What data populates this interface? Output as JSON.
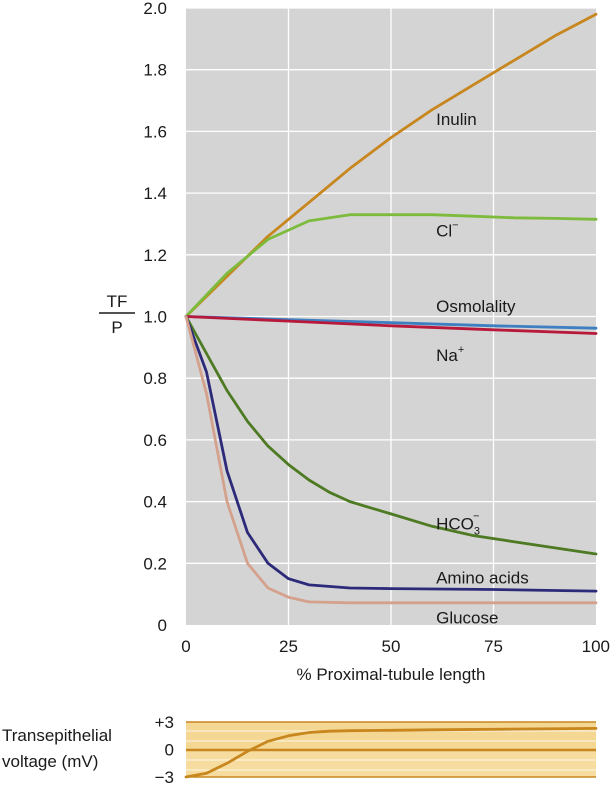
{
  "chart_data": [
    {
      "type": "line",
      "ylabel_numerator": "TF",
      "ylabel_denominator": "P",
      "xlabel": "% Proximal-tubule length",
      "xlim": [
        0,
        100
      ],
      "ylim": [
        0,
        2.0
      ],
      "x_ticks": [
        "0",
        "25",
        "50",
        "75",
        "100"
      ],
      "x_tick_values": [
        0,
        25,
        50,
        75,
        100
      ],
      "y_ticks": [
        "2.0",
        "1.8",
        "1.6",
        "1.4",
        "1.2",
        "1.0",
        "0.8",
        "0.6",
        "0.4",
        "0.2",
        "0"
      ],
      "y_tick_values": [
        2.0,
        1.8,
        1.6,
        1.4,
        1.2,
        1.0,
        0.8,
        0.6,
        0.4,
        0.2,
        0
      ],
      "grid": true,
      "series": [
        {
          "name": "Inulin",
          "color": "#c8861e",
          "label_x": 61,
          "label_y": 1.62,
          "x": [
            0,
            10,
            20,
            30,
            40,
            50,
            60,
            70,
            80,
            90,
            100
          ],
          "y": [
            1.0,
            1.13,
            1.26,
            1.37,
            1.48,
            1.58,
            1.67,
            1.75,
            1.83,
            1.91,
            1.98
          ]
        },
        {
          "name": "Cl",
          "sup": "−",
          "color": "#7dbb3c",
          "label_x": 61,
          "label_y": 1.26,
          "x": [
            0,
            10,
            20,
            30,
            40,
            50,
            60,
            70,
            80,
            90,
            100
          ],
          "y": [
            1.0,
            1.14,
            1.25,
            1.31,
            1.33,
            1.33,
            1.33,
            1.325,
            1.32,
            1.318,
            1.315
          ]
        },
        {
          "name": "Osmolality",
          "color": "#3e7fc2",
          "label_x": 61,
          "label_y": 1.015,
          "x": [
            0,
            25,
            50,
            75,
            100
          ],
          "y": [
            1.0,
            0.99,
            0.98,
            0.97,
            0.962
          ]
        },
        {
          "name": "Na",
          "sup": "+",
          "color": "#b8193b",
          "label_x": 61,
          "label_y": 0.855,
          "x": [
            0,
            25,
            50,
            75,
            100
          ],
          "y": [
            1.0,
            0.985,
            0.97,
            0.957,
            0.945
          ]
        },
        {
          "name": "HCO",
          "sub": "3",
          "sup": "−",
          "color": "#4d7a22",
          "label_x": 61,
          "label_y": 0.31,
          "x": [
            0,
            5,
            10,
            15,
            20,
            25,
            30,
            35,
            40,
            45,
            50,
            60,
            70,
            80,
            90,
            100
          ],
          "y": [
            1.0,
            0.88,
            0.76,
            0.66,
            0.58,
            0.52,
            0.47,
            0.43,
            0.4,
            0.38,
            0.36,
            0.32,
            0.29,
            0.27,
            0.25,
            0.23
          ]
        },
        {
          "name": "Amino acids",
          "color": "#2d2a7a",
          "label_x": 61,
          "label_y": 0.135,
          "x": [
            0,
            5,
            10,
            15,
            20,
            25,
            30,
            40,
            50,
            75,
            100
          ],
          "y": [
            1.0,
            0.82,
            0.5,
            0.3,
            0.2,
            0.15,
            0.13,
            0.12,
            0.118,
            0.115,
            0.11
          ]
        },
        {
          "name": "Glucose",
          "color": "#d4a18d",
          "label_x": 61,
          "label_y": 0.005,
          "x": [
            0,
            5,
            10,
            15,
            20,
            25,
            30,
            40,
            50,
            75,
            100
          ],
          "y": [
            1.0,
            0.75,
            0.4,
            0.2,
            0.12,
            0.09,
            0.075,
            0.072,
            0.072,
            0.072,
            0.072
          ]
        }
      ]
    },
    {
      "type": "line",
      "ylabel_line1": "Transepithelial",
      "ylabel_line2": "voltage (mV)",
      "xlim": [
        0,
        100
      ],
      "ylim": [
        -3,
        3
      ],
      "y_ticks": [
        "+3",
        "0",
        "−3"
      ],
      "y_tick_values": [
        3,
        0,
        -3
      ],
      "series": [
        {
          "color": "#c8861e",
          "x": [
            0,
            5,
            10,
            15,
            20,
            25,
            30,
            35,
            40,
            50,
            60,
            75,
            100
          ],
          "y": [
            -3.0,
            -2.6,
            -1.5,
            -0.2,
            0.9,
            1.5,
            1.85,
            2.0,
            2.05,
            2.1,
            2.15,
            2.2,
            2.3
          ]
        }
      ]
    }
  ]
}
